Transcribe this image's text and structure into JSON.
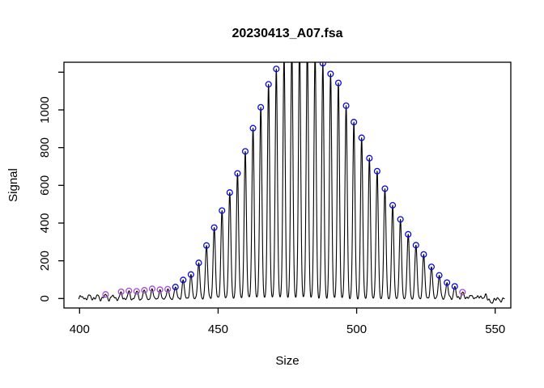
{
  "window": {
    "title": "20230413_A07.fsa"
  },
  "colors": {
    "background": "#ffffff",
    "trace": "#000000",
    "axis": "#000000",
    "peak_marker_blue": "#0a0ae0",
    "minor_marker_purple": "#a44bd3"
  },
  "chart_data": {
    "type": "line",
    "title": "20230413_A07.fsa",
    "xlabel": "Size",
    "ylabel": "Signal",
    "xlim": [
      394.4,
      555.6
    ],
    "ylim": [
      -49,
      1253
    ],
    "x_ticks": [
      400,
      450,
      500,
      550
    ],
    "y_ticks": [
      0,
      200,
      400,
      600,
      800,
      1000
    ],
    "y_extra_unlabeled_tick": 1200,
    "grid": false,
    "legend_position": "none",
    "trace_range": [
      399.7,
      553.4
    ],
    "peak_sigma": 0.4,
    "peaks_format": [
      "size",
      "height_signal",
      "marker(b=blue circle, p=purple circle, empty=none)"
    ],
    "peaks": [
      [
        401.0,
        12,
        ""
      ],
      [
        403.8,
        16,
        ""
      ],
      [
        406.6,
        14,
        ""
      ],
      [
        409.4,
        20,
        "p"
      ],
      [
        412.2,
        13,
        ""
      ],
      [
        415.0,
        26,
        "p"
      ],
      [
        417.8,
        31,
        "p"
      ],
      [
        420.6,
        37,
        "p"
      ],
      [
        423.4,
        44,
        "p"
      ],
      [
        426.2,
        44,
        "p"
      ],
      [
        429.0,
        38,
        "p"
      ],
      [
        431.8,
        48,
        "p"
      ],
      [
        434.6,
        63,
        "b"
      ],
      [
        437.4,
        97,
        "b"
      ],
      [
        440.2,
        124,
        "b"
      ],
      [
        443.0,
        189,
        "b"
      ],
      [
        445.8,
        283,
        "b"
      ],
      [
        448.6,
        377,
        "b"
      ],
      [
        451.4,
        468,
        "b"
      ],
      [
        454.2,
        566,
        "b"
      ],
      [
        457.0,
        666,
        "b"
      ],
      [
        459.8,
        780,
        "b"
      ],
      [
        462.6,
        906,
        "b"
      ],
      [
        465.4,
        1021,
        "b"
      ],
      [
        468.2,
        1140,
        "b"
      ],
      [
        471.0,
        1216,
        "b"
      ],
      [
        473.8,
        1290,
        ""
      ],
      [
        476.6,
        1338,
        ""
      ],
      [
        479.4,
        1355,
        ""
      ],
      [
        482.2,
        1342,
        ""
      ],
      [
        485.0,
        1302,
        ""
      ],
      [
        487.8,
        1248,
        "b"
      ],
      [
        490.6,
        1190,
        "b"
      ],
      [
        493.4,
        1140,
        "b"
      ],
      [
        496.2,
        1021,
        "b"
      ],
      [
        499.0,
        934,
        "b"
      ],
      [
        501.8,
        847,
        "b"
      ],
      [
        504.6,
        738,
        "b"
      ],
      [
        507.4,
        674,
        "b"
      ],
      [
        510.2,
        583,
        "b"
      ],
      [
        513.0,
        490,
        "b"
      ],
      [
        515.8,
        413,
        "b"
      ],
      [
        518.6,
        339,
        "b"
      ],
      [
        521.4,
        285,
        "b"
      ],
      [
        524.2,
        233,
        "b"
      ],
      [
        527.0,
        165,
        "b"
      ],
      [
        529.8,
        123,
        "b"
      ],
      [
        532.6,
        87,
        "b"
      ],
      [
        535.4,
        66,
        "b"
      ],
      [
        538.2,
        37,
        "p"
      ],
      [
        541.0,
        24,
        ""
      ],
      [
        543.8,
        19,
        ""
      ],
      [
        546.6,
        26,
        ""
      ],
      [
        549.4,
        14,
        ""
      ],
      [
        552.2,
        9,
        ""
      ]
    ]
  }
}
